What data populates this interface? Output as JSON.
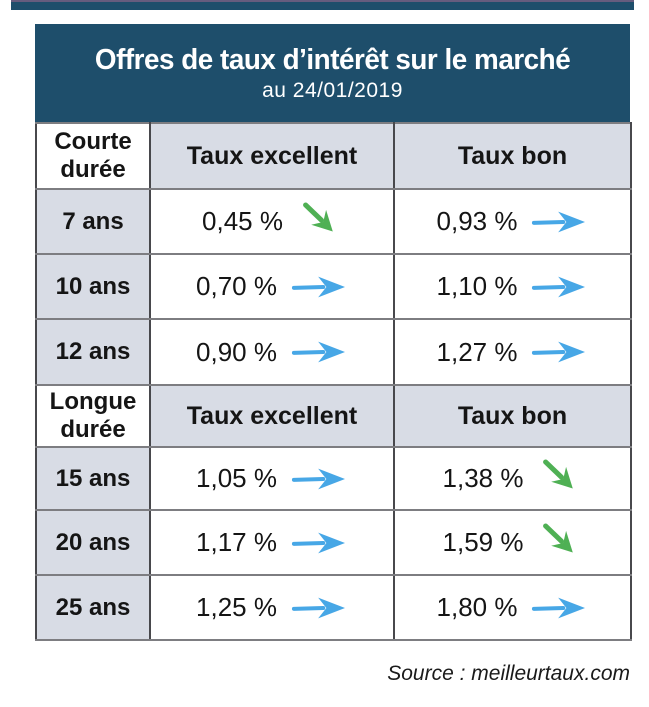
{
  "banner": {
    "title": "Offres de taux d’intérêt sur le marché",
    "date": "au 24/01/2019"
  },
  "table": {
    "courte": {
      "label": "Courte durée",
      "col_excellent": "Taux excellent",
      "col_bon": "Taux bon",
      "rows": [
        {
          "duree": "7 ans",
          "excellent": "0,45 %",
          "excellent_trend": "down",
          "bon": "0,93 %",
          "bon_trend": "right"
        },
        {
          "duree": "10 ans",
          "excellent": "0,70 %",
          "excellent_trend": "right",
          "bon": "1,10 %",
          "bon_trend": "right"
        },
        {
          "duree": "12 ans",
          "excellent": "0,90 %",
          "excellent_trend": "right",
          "bon": "1,27 %",
          "bon_trend": "right"
        }
      ]
    },
    "longue": {
      "label": "Longue durée",
      "col_excellent": "Taux excellent",
      "col_bon": "Taux bon",
      "rows": [
        {
          "duree": "15 ans",
          "excellent": "1,05 %",
          "excellent_trend": "right",
          "bon": "1,38 %",
          "bon_trend": "down"
        },
        {
          "duree": "20 ans",
          "excellent": "1,17 %",
          "excellent_trend": "right",
          "bon": "1,59 %",
          "bon_trend": "down"
        },
        {
          "duree": "25 ans",
          "excellent": "1,25 %",
          "excellent_trend": "right",
          "bon": "1,80 %",
          "bon_trend": "right"
        }
      ]
    }
  },
  "source": "Source : meilleurtaux.com",
  "colors": {
    "banner_bg": "#1E4E6B",
    "cell_gray": "#D8DCE5",
    "arrow_blue": "#47A7E6",
    "arrow_green": "#4FB054"
  },
  "chart_data": {
    "type": "table",
    "title": "Offres de taux d’intérêt sur le marché",
    "subtitle": "au 24/01/2019",
    "columns": [
      "Durée",
      "Taux excellent",
      "Taux bon"
    ],
    "unit": "%",
    "sections": [
      {
        "label": "Courte durée",
        "rows": [
          {
            "duree": "7 ans",
            "taux_excellent": 0.45,
            "taux_excellent_trend": "down",
            "taux_bon": 0.93,
            "taux_bon_trend": "stable"
          },
          {
            "duree": "10 ans",
            "taux_excellent": 0.7,
            "taux_excellent_trend": "stable",
            "taux_bon": 1.1,
            "taux_bon_trend": "stable"
          },
          {
            "duree": "12 ans",
            "taux_excellent": 0.9,
            "taux_excellent_trend": "stable",
            "taux_bon": 1.27,
            "taux_bon_trend": "stable"
          }
        ]
      },
      {
        "label": "Longue durée",
        "rows": [
          {
            "duree": "15 ans",
            "taux_excellent": 1.05,
            "taux_excellent_trend": "stable",
            "taux_bon": 1.38,
            "taux_bon_trend": "down"
          },
          {
            "duree": "20 ans",
            "taux_excellent": 1.17,
            "taux_excellent_trend": "stable",
            "taux_bon": 1.59,
            "taux_bon_trend": "down"
          },
          {
            "duree": "25 ans",
            "taux_excellent": 1.25,
            "taux_excellent_trend": "stable",
            "taux_bon": 1.8,
            "taux_bon_trend": "stable"
          }
        ]
      }
    ],
    "source": "Source : meilleurtaux.com"
  }
}
